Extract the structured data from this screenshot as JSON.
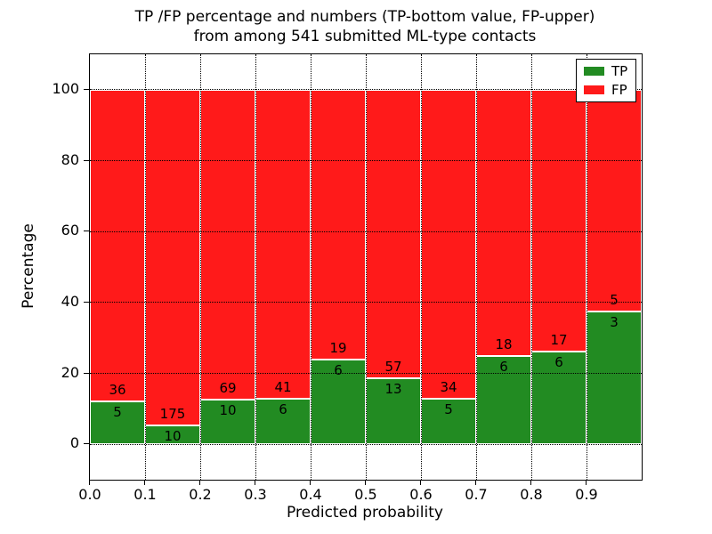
{
  "figure": {
    "title_line1": "TP /FP percentage and numbers (TP-bottom value, FP-upper)",
    "title_line2": "from among 541 submitted ML-type contacts"
  },
  "chart_data": {
    "type": "bar",
    "stacked": true,
    "normalized": "each bin scaled to 100%",
    "title": "TP /FP percentage and numbers (TP-bottom value, FP-upper) from among 541 submitted ML-type contacts",
    "xlabel": "Predicted probability",
    "ylabel": "Percentage",
    "total_contacts": 541,
    "bin_edges": [
      0.0,
      0.1,
      0.2,
      0.3,
      0.4,
      0.5,
      0.6,
      0.7,
      0.8,
      0.9,
      1.0
    ],
    "series": [
      {
        "name": "TP",
        "color": "#228b22",
        "counts": [
          5,
          10,
          10,
          6,
          6,
          13,
          5,
          6,
          6,
          3
        ]
      },
      {
        "name": "FP",
        "color": "#ff1a1a",
        "counts": [
          36,
          175,
          69,
          41,
          19,
          57,
          34,
          18,
          17,
          5
        ]
      }
    ],
    "tp_percent_heights": [
      12.2,
      5.4,
      12.7,
      12.8,
      24.0,
      18.6,
      12.8,
      25.0,
      26.1,
      37.5
    ],
    "bar_value_labels": "raw counts, FP above boundary, TP below boundary",
    "xlim": [
      0.0,
      1.0
    ],
    "ylim": [
      -10,
      110
    ],
    "xticks": [
      "0.0",
      "0.1",
      "0.2",
      "0.3",
      "0.4",
      "0.5",
      "0.6",
      "0.7",
      "0.8",
      "0.9"
    ],
    "yticks": [
      0,
      20,
      40,
      60,
      80,
      100
    ],
    "grid": {
      "style": "dotted",
      "color": "#000000"
    },
    "bar_edge_color": "#ffffff",
    "background": "#ffffff",
    "legend": {
      "position": "upper-right",
      "entries": [
        "TP",
        "FP"
      ]
    }
  }
}
